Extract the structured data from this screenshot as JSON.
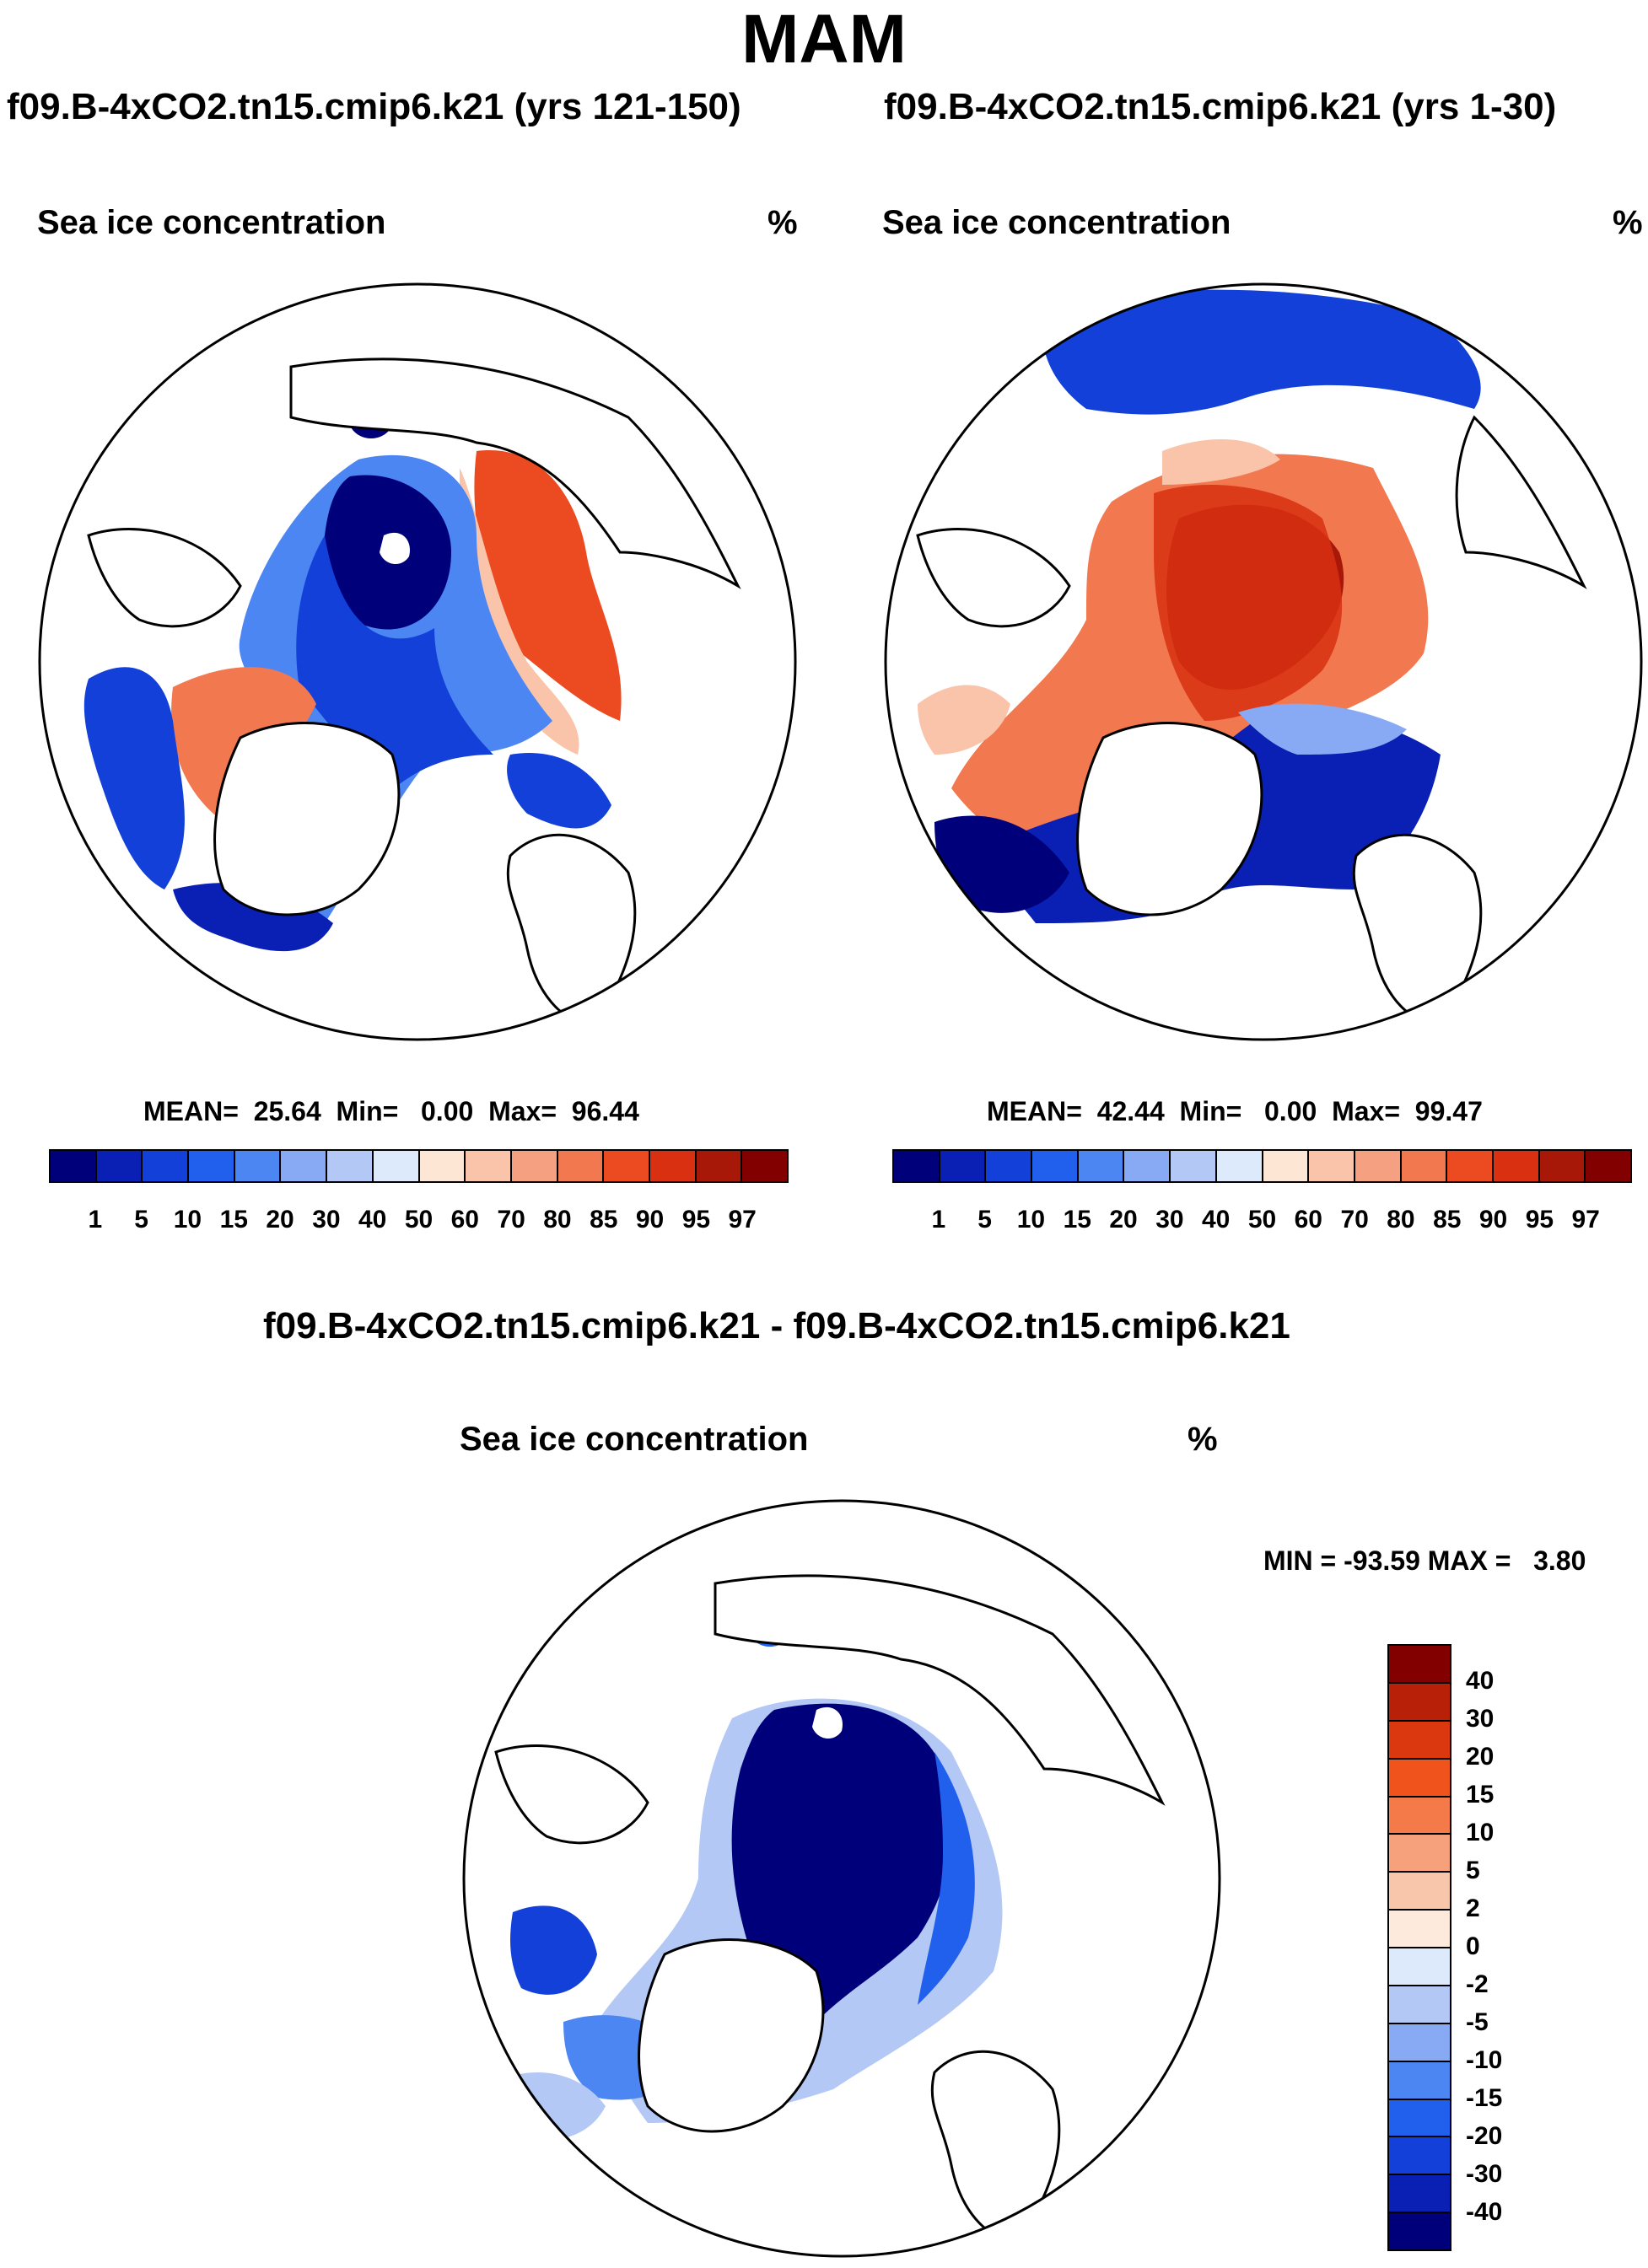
{
  "title": "MAM",
  "panels": [
    {
      "title": "f09.B-4xCO2.tn15.cmip6.k21 (yrs 121-150)",
      "field_label": "Sea ice concentration",
      "unit": "%",
      "stats": "MEAN=  25.64  Min=   0.00  Max=  96.44"
    },
    {
      "title": "f09.B-4xCO2.tn15.cmip6.k21 (yrs 1-30)",
      "field_label": "Sea ice concentration",
      "unit": "%",
      "stats": "MEAN=  42.44  Min=   0.00  Max=  99.47"
    }
  ],
  "diff": {
    "title": "f09.B-4xCO2.tn15.cmip6.k21 - f09.B-4xCO2.tn15.cmip6.k21",
    "field_label": "Sea ice concentration",
    "unit": "%",
    "stats": "MIN = -93.59 MAX =   3.80"
  },
  "colorbar_abs": {
    "ticks": [
      "1",
      "5",
      "10",
      "15",
      "20",
      "30",
      "40",
      "50",
      "60",
      "70",
      "80",
      "85",
      "90",
      "95",
      "97"
    ],
    "colors": [
      "#00007a",
      "#0a20b4",
      "#1240d8",
      "#2060ec",
      "#4c86f2",
      "#88aaf4",
      "#b4c8f6",
      "#dceafc",
      "#fde6d4",
      "#f9c4aa",
      "#f5a080",
      "#f27850",
      "#ec4a20",
      "#d83010",
      "#a81808",
      "#820000"
    ]
  },
  "colorbar_diff": {
    "ticks": [
      "40",
      "30",
      "20",
      "15",
      "10",
      "5",
      "2",
      "0",
      "-2",
      "-5",
      "-10",
      "-15",
      "-20",
      "-30",
      "-40"
    ],
    "colors": [
      "#820000",
      "#b82008",
      "#dc3810",
      "#f0541c",
      "#f47a4a",
      "#f6a07c",
      "#f8c6aa",
      "#fdeadc",
      "#dceafc",
      "#b4c8f6",
      "#88aaf4",
      "#4c86f2",
      "#2060ec",
      "#1240d8",
      "#0a20b4",
      "#00007a"
    ]
  },
  "map_colors": {
    "deep_blue": "#00007a",
    "mid_blue": "#2060ec",
    "light_blue": "#88aaf4",
    "pale_blue": "#dceafc",
    "orange": "#f27850",
    "red_orange": "#ec4a20",
    "dark_red": "#a81808",
    "pale_orange": "#f9c4aa"
  }
}
